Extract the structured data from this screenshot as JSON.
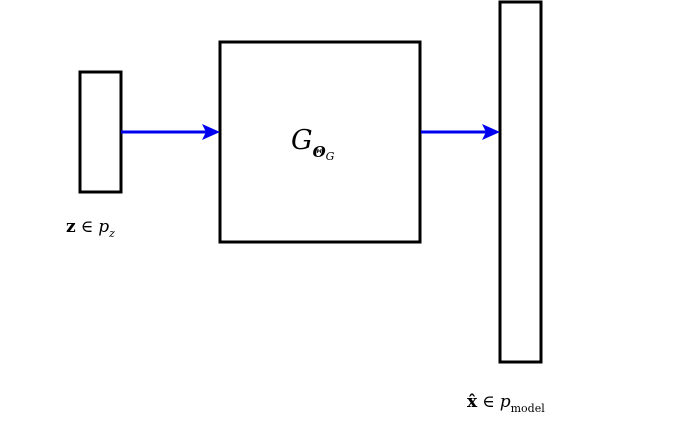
{
  "diagram": {
    "input": {
      "symbol": "z",
      "relation": "∈",
      "distribution": "p",
      "subscript": "z"
    },
    "generator": {
      "symbol": "G",
      "subscript": "Θ",
      "subsubscript": "G"
    },
    "output": {
      "symbol": "x̂",
      "relation": "∈",
      "distribution": "p",
      "subscript": "model"
    },
    "colors": {
      "arrow": "#0000ee",
      "box_stroke": "#000000"
    }
  }
}
